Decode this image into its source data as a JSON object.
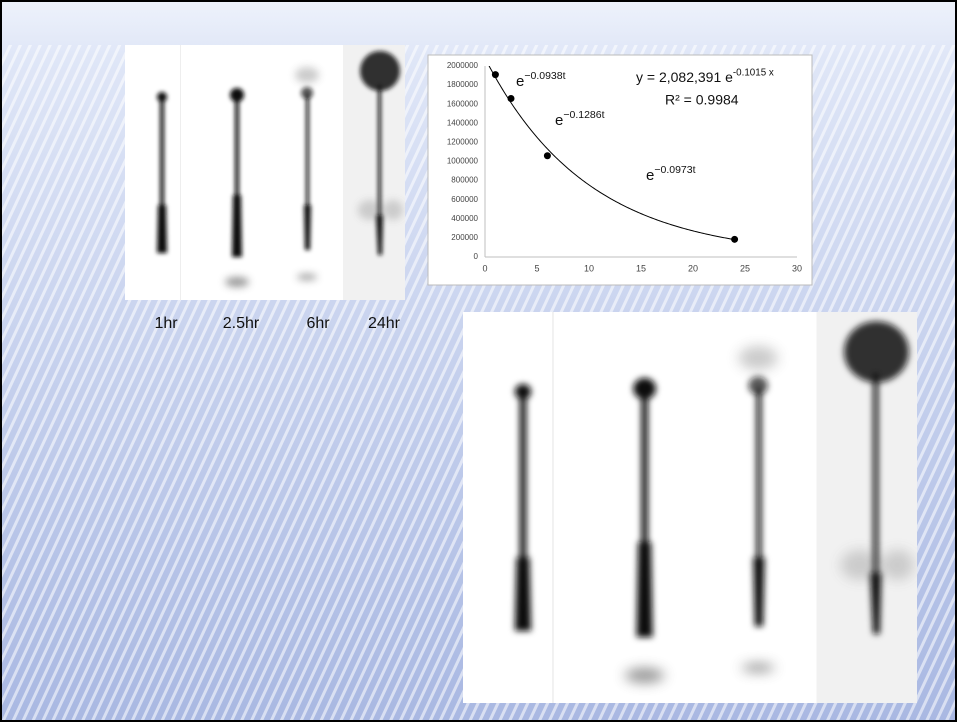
{
  "chart_data": {
    "type": "scatter",
    "x": [
      1,
      2.5,
      6,
      24
    ],
    "values": [
      1910000,
      1660000,
      1060000,
      185000
    ],
    "color": "#000000",
    "xlim": [
      0,
      30
    ],
    "xticks": [
      0,
      5,
      10,
      15,
      20,
      25,
      30
    ],
    "ylim": [
      0,
      2000000
    ],
    "yticks": [
      0,
      200000,
      400000,
      600000,
      800000,
      1000000,
      1200000,
      1400000,
      1600000,
      1800000,
      2000000
    ],
    "grid": false,
    "trendline": {
      "a": 2082391,
      "b": -0.1015,
      "color": "#000000"
    },
    "equation": {
      "text": "y = 2,082,391 e",
      "exponent": "-0.1015 x"
    },
    "r_squared": "R² = 0.9984",
    "annotations": [
      {
        "text": "e",
        "exponent": "−0.0938t"
      },
      {
        "text": "e",
        "exponent": "−0.1286t"
      },
      {
        "text": "e",
        "exponent": "−0.0973t"
      }
    ]
  },
  "image_labels": [
    "1hr",
    "2.5hr",
    "6hr",
    "24hr"
  ]
}
